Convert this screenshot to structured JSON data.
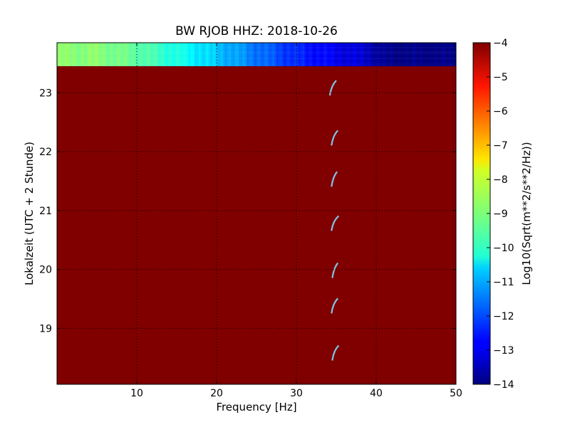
{
  "chart_data": {
    "type": "heatmap",
    "title": "BW RJOB HHZ: 2018-10-26",
    "xlabel": "Frequency [Hz]",
    "ylabel": "Lokalzeit (UTC + 2 Stunde)",
    "xlim": [
      0,
      50
    ],
    "ylim": [
      23.85,
      18.05
    ],
    "x_ticks": [
      10,
      20,
      30,
      40,
      50
    ],
    "y_ticks": [
      19,
      20,
      21,
      22,
      23
    ],
    "grid": true,
    "colormap": "jet",
    "colorbar": {
      "label": "Log10(Sqrt(m**2/s**2/Hz))",
      "range": [
        -14,
        -4
      ],
      "ticks": [
        -4,
        -5,
        -6,
        -7,
        -8,
        -9,
        -10,
        -11,
        -12,
        -13,
        -14
      ]
    },
    "data_end_time": 23.45,
    "level_profile": [
      {
        "freq": 0,
        "value": -8.9
      },
      {
        "freq": 5,
        "value": -8.9
      },
      {
        "freq": 10,
        "value": -9.3
      },
      {
        "freq": 15,
        "value": -10.0
      },
      {
        "freq": 20,
        "value": -10.8
      },
      {
        "freq": 25,
        "value": -11.6
      },
      {
        "freq": 30,
        "value": -12.4
      },
      {
        "freq": 35,
        "value": -12.9
      },
      {
        "freq": 39,
        "value": -13.3
      },
      {
        "freq": 41,
        "value": -13.9
      },
      {
        "freq": 50,
        "value": -14.0
      }
    ],
    "events_approx": [
      {
        "time": 18.6,
        "freq_start": 34.5,
        "freq_end": 35.3
      },
      {
        "time": 19.4,
        "freq_start": 34.4,
        "freq_end": 35.2
      },
      {
        "time": 20.0,
        "freq_start": 34.5,
        "freq_end": 35.2
      },
      {
        "time": 20.8,
        "freq_start": 34.4,
        "freq_end": 35.3
      },
      {
        "time": 21.55,
        "freq_start": 34.4,
        "freq_end": 35.1
      },
      {
        "time": 22.25,
        "freq_start": 34.4,
        "freq_end": 35.2
      },
      {
        "time": 23.1,
        "freq_start": 34.2,
        "freq_end": 35.0
      }
    ]
  }
}
